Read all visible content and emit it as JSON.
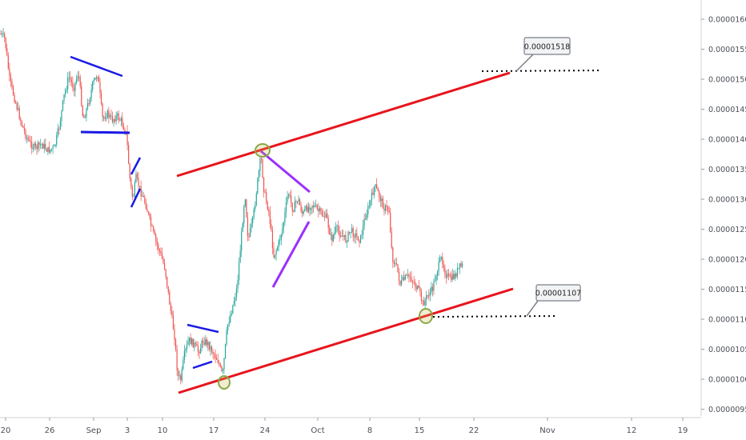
{
  "chart_data": {
    "type": "candlestick",
    "x_axis": {
      "ticks": [
        "20",
        "26",
        "Sep",
        "3",
        "10",
        "17",
        "24",
        "Oct",
        "8",
        "15",
        "22",
        "Nov",
        "12",
        "19"
      ],
      "note": "bottom time axis labels as printed"
    },
    "y_axis": {
      "ticks": [
        "0.00001600",
        "0.00001550",
        "0.00001500",
        "0.00001450",
        "0.00001400",
        "0.00001350",
        "0.00001300",
        "0.00001250",
        "0.00001200",
        "0.00001150",
        "0.00001100",
        "0.00001050",
        "0.00001000",
        "0.00000950"
      ],
      "range": [
        9.3e-06,
        1.63e-05
      ],
      "position": "right"
    },
    "grid": false,
    "annotations": {
      "upper_target_label": "0.00001518",
      "lower_target_label": "0.00001107"
    },
    "colors": {
      "up_candle": "#26a69a",
      "down_candle": "#ef5350",
      "channel_line": "#e8141c",
      "pattern_blue": "#1a1ae6",
      "pattern_purple": "#9b30ff",
      "touch_circle": "#8aa84a"
    }
  }
}
